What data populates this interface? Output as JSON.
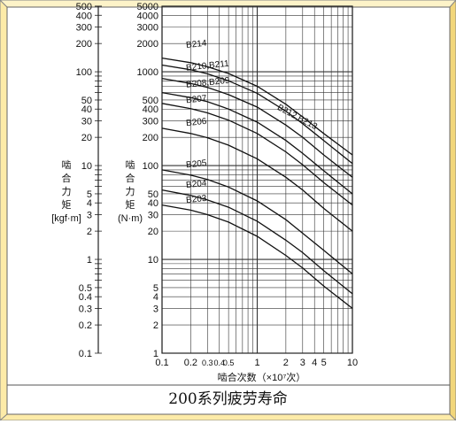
{
  "caption": "200系列疲劳寿命",
  "chart_data": {
    "type": "line",
    "title": "200系列疲劳寿命",
    "x_scale": "log",
    "y_scale": "log",
    "xlim": [
      0.1,
      10
    ],
    "ylim_nm": [
      1,
      5000
    ],
    "ylim_kgfm": [
      0.1,
      500
    ],
    "grid": true,
    "xlabel": "啮合次数（×10⁷次）",
    "ylabel_nm": "啮合力矩（N·m）",
    "ylabel_kgfm": "啮合力矩 [kgf·m]",
    "ylabel_nm_chars": [
      "啮",
      "合",
      "力",
      "矩",
      "(N·m)"
    ],
    "ylabel_kgfm_chars": [
      "啮",
      "合",
      "力",
      "矩",
      "[kgf·m]"
    ],
    "x_ticks": [
      "0.1",
      "0.2",
      "0.3",
      "0.4",
      "0.5",
      "1",
      "2",
      "3",
      "4",
      "5",
      "10"
    ],
    "y_ticks_nm": [
      "1",
      "2",
      "3",
      "4",
      "5",
      "10",
      "20",
      "30",
      "40",
      "50",
      "100",
      "200",
      "300",
      "400",
      "500",
      "1000",
      "2000",
      "3000",
      "4000",
      "5000"
    ],
    "y_ticks_kgfm": [
      "0.1",
      "0.2",
      "0.3",
      "0.4",
      "0.5",
      "1",
      "2",
      "3",
      "4",
      "5",
      "10",
      "20",
      "30",
      "40",
      "50",
      "100",
      "200",
      "300",
      "400",
      "500"
    ],
    "x": [
      0.1,
      0.2,
      0.3,
      0.5,
      1,
      2,
      3,
      5,
      10
    ],
    "series": [
      {
        "name": "B214",
        "values": [
          1400,
          1250,
          1130,
          960,
          700,
          450,
          330,
          220,
          130
        ]
      },
      {
        "name": "B212,B213",
        "values": [
          1180,
          1050,
          950,
          800,
          590,
          380,
          280,
          185,
          105
        ]
      },
      {
        "name": "B210,B211",
        "values": [
          850,
          750,
          680,
          570,
          420,
          270,
          200,
          130,
          75
        ]
      },
      {
        "name": "B208,B209",
        "values": [
          600,
          530,
          480,
          400,
          290,
          185,
          135,
          88,
          50
        ]
      },
      {
        "name": "B207",
        "values": [
          460,
          405,
          365,
          305,
          220,
          140,
          102,
          66,
          38
        ]
      },
      {
        "name": "B206",
        "values": [
          250,
          220,
          198,
          165,
          118,
          75,
          55,
          35,
          20
        ]
      },
      {
        "name": "B205",
        "values": [
          90,
          79,
          71,
          59,
          42,
          26.5,
          19,
          12.5,
          7
        ]
      },
      {
        "name": "B204",
        "values": [
          55,
          48,
          43,
          36,
          25.5,
          16,
          11.8,
          7.6,
          4.3
        ]
      },
      {
        "name": "B203",
        "values": [
          38,
          33.5,
          30,
          25,
          17.6,
          11,
          8.1,
          5.2,
          3
        ]
      }
    ]
  }
}
